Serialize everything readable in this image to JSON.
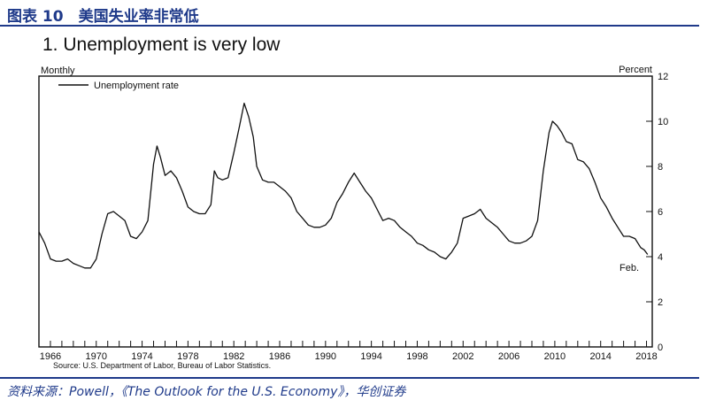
{
  "figure": {
    "header": "图表 10　美国失业率非常低",
    "source_note": "资料来源：Powell，《The Outlook for the U.S. Economy》，华创证券"
  },
  "chart_data": {
    "type": "line",
    "title": "1.  Unemployment is very low",
    "left_label": "Monthly",
    "ylabel": "Percent",
    "legend": [
      "Unemployment rate"
    ],
    "end_annotation": "Feb.",
    "source": "Source:  U.S. Department of Labor, Bureau of Labor Statistics.",
    "xlim": [
      1965,
      2018.5
    ],
    "ylim": [
      0,
      12
    ],
    "x_ticks": [
      1966,
      1970,
      1974,
      1978,
      1982,
      1986,
      1990,
      1994,
      1998,
      2002,
      2006,
      2010,
      2014,
      2018
    ],
    "y_ticks": [
      0,
      2,
      4,
      6,
      8,
      10,
      12
    ],
    "series": [
      {
        "name": "Unemployment rate",
        "x": [
          1965.0,
          1965.5,
          1966.0,
          1966.5,
          1967.0,
          1967.5,
          1968.0,
          1968.5,
          1969.0,
          1969.5,
          1970.0,
          1970.5,
          1971.0,
          1971.5,
          1972.0,
          1972.5,
          1973.0,
          1973.5,
          1974.0,
          1974.5,
          1975.0,
          1975.3,
          1975.6,
          1976.0,
          1976.5,
          1977.0,
          1977.5,
          1978.0,
          1978.5,
          1979.0,
          1979.5,
          1980.0,
          1980.3,
          1980.6,
          1981.0,
          1981.5,
          1982.0,
          1982.5,
          1982.9,
          1983.3,
          1983.7,
          1984.0,
          1984.5,
          1985.0,
          1985.5,
          1986.0,
          1986.5,
          1987.0,
          1987.5,
          1988.0,
          1988.5,
          1989.0,
          1989.5,
          1990.0,
          1990.5,
          1991.0,
          1991.5,
          1992.0,
          1992.5,
          1993.0,
          1993.5,
          1994.0,
          1994.5,
          1995.0,
          1995.5,
          1996.0,
          1996.5,
          1997.0,
          1997.5,
          1998.0,
          1998.5,
          1999.0,
          1999.5,
          2000.0,
          2000.5,
          2001.0,
          2001.5,
          2002.0,
          2002.5,
          2003.0,
          2003.5,
          2004.0,
          2004.5,
          2005.0,
          2005.5,
          2006.0,
          2006.5,
          2007.0,
          2007.5,
          2008.0,
          2008.5,
          2009.0,
          2009.5,
          2009.8,
          2010.2,
          2010.6,
          2011.0,
          2011.5,
          2012.0,
          2012.5,
          2013.0,
          2013.5,
          2014.0,
          2014.5,
          2015.0,
          2015.5,
          2016.0,
          2016.5,
          2017.0,
          2017.5,
          2017.8,
          2018.1
        ],
        "values": [
          5.1,
          4.6,
          3.9,
          3.8,
          3.8,
          3.9,
          3.7,
          3.6,
          3.5,
          3.5,
          3.9,
          5.0,
          5.9,
          6.0,
          5.8,
          5.6,
          4.9,
          4.8,
          5.1,
          5.6,
          8.1,
          8.9,
          8.4,
          7.6,
          7.8,
          7.5,
          6.9,
          6.2,
          6.0,
          5.9,
          5.9,
          6.3,
          7.8,
          7.5,
          7.4,
          7.5,
          8.6,
          9.8,
          10.8,
          10.2,
          9.3,
          8.0,
          7.4,
          7.3,
          7.3,
          7.1,
          6.9,
          6.6,
          6.0,
          5.7,
          5.4,
          5.3,
          5.3,
          5.4,
          5.7,
          6.4,
          6.8,
          7.3,
          7.7,
          7.3,
          6.9,
          6.6,
          6.1,
          5.6,
          5.7,
          5.6,
          5.3,
          5.1,
          4.9,
          4.6,
          4.5,
          4.3,
          4.2,
          4.0,
          3.9,
          4.2,
          4.6,
          5.7,
          5.8,
          5.9,
          6.1,
          5.7,
          5.5,
          5.3,
          5.0,
          4.7,
          4.6,
          4.6,
          4.7,
          4.9,
          5.6,
          7.8,
          9.5,
          10.0,
          9.8,
          9.5,
          9.1,
          9.0,
          8.3,
          8.2,
          7.9,
          7.3,
          6.6,
          6.2,
          5.7,
          5.3,
          4.9,
          4.9,
          4.8,
          4.4,
          4.3,
          4.1
        ]
      }
    ]
  }
}
